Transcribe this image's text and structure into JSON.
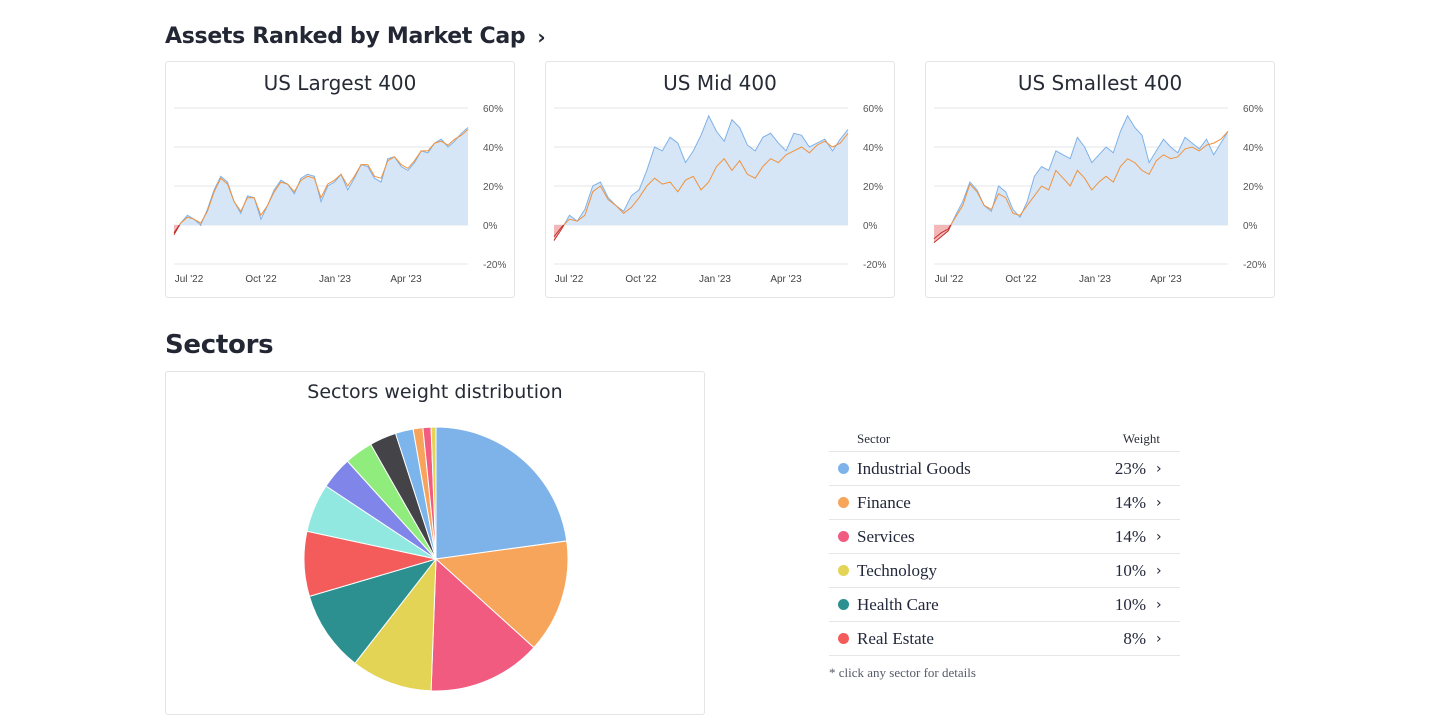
{
  "sections": {
    "market_cap_title": "Assets Ranked by Market Cap",
    "sectors_title": "Sectors"
  },
  "chart_data": [
    {
      "type": "area",
      "title": "US Largest 400",
      "x_ticks": [
        "Jul '22",
        "Oct '22",
        "Jan '23",
        "Apr '23"
      ],
      "y_ticks": [
        "60%",
        "40%",
        "20%",
        "0%",
        "-20%"
      ],
      "ylim": [
        -20,
        60
      ],
      "y_position": "right",
      "grid": true,
      "series": [
        {
          "values": [
            -5,
            1,
            5,
            3,
            0,
            8,
            18,
            25,
            22,
            12,
            6,
            15,
            14,
            3,
            10,
            18,
            23,
            21,
            16,
            24,
            26,
            25,
            12,
            20,
            22,
            26,
            18,
            24,
            31,
            30,
            24,
            22,
            34,
            35,
            30,
            28,
            32,
            38,
            37,
            42,
            44,
            40,
            43,
            47,
            50
          ]
        },
        {
          "values": [
            -4,
            1,
            4,
            3,
            1,
            7,
            17,
            24,
            21,
            12,
            7,
            14,
            14,
            5,
            10,
            17,
            22,
            21,
            17,
            23,
            25,
            24,
            14,
            21,
            23,
            26,
            20,
            25,
            31,
            31,
            25,
            24,
            33,
            35,
            31,
            29,
            33,
            38,
            38,
            42,
            43,
            41,
            44,
            46,
            49
          ]
        }
      ],
      "series_colors": [
        "#7fb1e8",
        "#f0923e"
      ]
    },
    {
      "type": "area",
      "title": "US Mid 400",
      "x_ticks": [
        "Jul '22",
        "Oct '22",
        "Jan '23",
        "Apr '23"
      ],
      "y_ticks": [
        "60%",
        "40%",
        "20%",
        "0%",
        "-20%"
      ],
      "ylim": [
        -20,
        60
      ],
      "y_position": "right",
      "grid": true,
      "series": [
        {
          "values": [
            -8,
            -2,
            5,
            2,
            8,
            20,
            22,
            14,
            10,
            7,
            15,
            18,
            28,
            40,
            38,
            45,
            42,
            32,
            38,
            46,
            56,
            48,
            43,
            54,
            50,
            41,
            38,
            45,
            47,
            42,
            38,
            47,
            46,
            40,
            42,
            44,
            38,
            44,
            49
          ]
        },
        {
          "values": [
            -6,
            -1,
            3,
            2,
            5,
            17,
            20,
            13,
            10,
            6,
            9,
            14,
            20,
            24,
            21,
            22,
            17,
            23,
            25,
            18,
            22,
            30,
            34,
            28,
            33,
            26,
            24,
            30,
            34,
            32,
            36,
            38,
            40,
            37,
            41,
            43,
            40,
            42,
            47
          ]
        }
      ],
      "series_colors": [
        "#7fb1e8",
        "#f0923e"
      ]
    },
    {
      "type": "area",
      "title": "US Smallest 400",
      "x_ticks": [
        "Jul '22",
        "Oct '22",
        "Jan '23",
        "Apr '23"
      ],
      "y_ticks": [
        "60%",
        "40%",
        "20%",
        "0%",
        "-20%"
      ],
      "ylim": [
        -20,
        60
      ],
      "y_position": "right",
      "grid": true,
      "series": [
        {
          "values": [
            -9,
            -6,
            -3,
            5,
            12,
            22,
            18,
            10,
            7,
            20,
            17,
            8,
            4,
            12,
            25,
            30,
            28,
            38,
            36,
            34,
            45,
            40,
            32,
            36,
            40,
            37,
            48,
            56,
            50,
            46,
            32,
            38,
            44,
            40,
            37,
            45,
            42,
            39,
            44,
            36,
            42,
            48
          ]
        },
        {
          "values": [
            -7,
            -4,
            -2,
            4,
            10,
            21,
            17,
            10,
            8,
            16,
            14,
            6,
            5,
            10,
            15,
            20,
            18,
            28,
            24,
            20,
            28,
            24,
            18,
            22,
            25,
            22,
            30,
            34,
            32,
            28,
            26,
            33,
            36,
            34,
            35,
            39,
            40,
            38,
            41,
            42,
            44,
            48
          ]
        }
      ],
      "series_colors": [
        "#7fb1e8",
        "#f0923e"
      ]
    },
    {
      "type": "pie",
      "title": "Sectors weight distribution",
      "slices": [
        {
          "label": "Industrial Goods",
          "value": 23,
          "color": "#7eb3ea"
        },
        {
          "label": "Finance",
          "value": 14,
          "color": "#f6a55b"
        },
        {
          "label": "Services",
          "value": 14,
          "color": "#f25b80"
        },
        {
          "label": "Technology",
          "value": 10,
          "color": "#e4d455"
        },
        {
          "label": "Health Care",
          "value": 10,
          "color": "#2b908f"
        },
        {
          "label": "Real Estate",
          "value": 8,
          "color": "#f45b5b"
        },
        {
          "value": 6,
          "color": "#91e8e1"
        },
        {
          "value": 4,
          "color": "#8085e9"
        },
        {
          "value": 3.5,
          "color": "#90ed7d"
        },
        {
          "value": 3.3,
          "color": "#434348"
        },
        {
          "value": 2.2,
          "color": "#7cb5ec"
        },
        {
          "value": 1.2,
          "color": "#f7a35c"
        },
        {
          "value": 1.0,
          "color": "#f15c80"
        },
        {
          "value": 0.6,
          "color": "#e4d354"
        }
      ]
    }
  ],
  "sector_table": {
    "col_sector": "Sector",
    "col_weight": "Weight",
    "arrow": "›",
    "rows": [
      {
        "name": "Industrial Goods",
        "weight": "23%",
        "color": "#7eb3ea"
      },
      {
        "name": "Finance",
        "weight": "14%",
        "color": "#f6a55b"
      },
      {
        "name": "Services",
        "weight": "14%",
        "color": "#f25b80"
      },
      {
        "name": "Technology",
        "weight": "10%",
        "color": "#e4d455"
      },
      {
        "name": "Health Care",
        "weight": "10%",
        "color": "#2b908f"
      },
      {
        "name": "Real Estate",
        "weight": "8%",
        "color": "#f45b5b"
      }
    ],
    "footnote": "* click any sector for details"
  }
}
